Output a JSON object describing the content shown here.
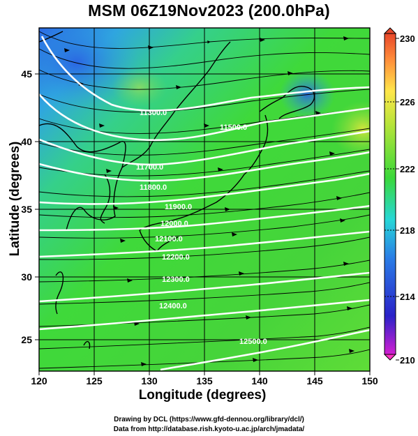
{
  "title": "MSM 06Z19Nov2023 (200.0hPa)",
  "map": {
    "xlabel": "Longitude (degrees)",
    "ylabel": "Latitude  (degrees)",
    "x_ticks": [
      "120",
      "125",
      "130",
      "135",
      "140",
      "145",
      "150"
    ],
    "y_ticks": [
      "25",
      "30",
      "35",
      "40",
      "45"
    ],
    "lon_range": [
      120,
      150
    ],
    "lat_range": [
      22.4,
      47.6
    ],
    "field": "temperature shading with height contours and streamlines",
    "contour_labels": [
      "11300.0",
      "11500.0",
      "11700.0",
      "11800.0",
      "11900.0",
      "12000.0",
      "12100.0",
      "12200.0",
      "12300.0",
      "12400.0",
      "12500.0"
    ],
    "colors": {
      "shading_low": "#2c66e8",
      "shading_mid": "#3fd93a",
      "shading_high": "#d8e63b",
      "contour": "#ffffff",
      "coast": "#000000",
      "streamline": "#000000"
    }
  },
  "colorbar": {
    "ticks": [
      "230",
      "226",
      "222",
      "218",
      "214",
      "210"
    ],
    "range": [
      210,
      230
    ],
    "stops": [
      "#ff33c4",
      "#2b2bd3",
      "#2a7de6",
      "#25d6d6",
      "#3ad83a",
      "#b9e43a",
      "#ffe64a",
      "#ff8c3a",
      "#e8472a"
    ]
  },
  "footer": {
    "line1": "Drawing by DCL (https://www.gfd-dennou.org/library/dcl/)",
    "line2": "Data from http://database.rish.kyoto-u.ac.jp/arch/jmadata/"
  }
}
